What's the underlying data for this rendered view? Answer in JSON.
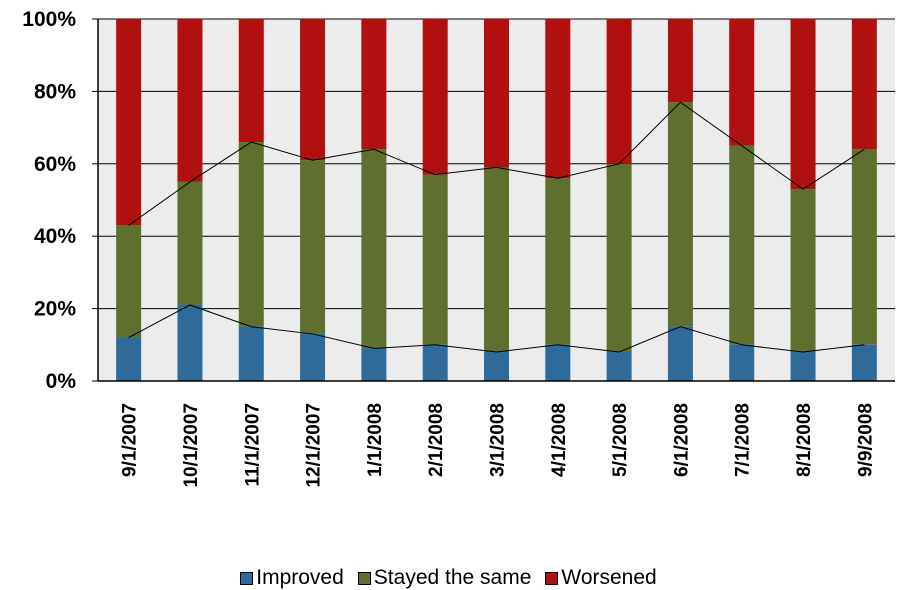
{
  "chart_data": {
    "type": "bar",
    "stacked": true,
    "percent_scale": true,
    "categories": [
      "9/1/2007",
      "10/1/2007",
      "11/1/2007",
      "12/1/2007",
      "1/1/2008",
      "2/1/2008",
      "3/1/2008",
      "4/1/2008",
      "5/1/2008",
      "6/1/2008",
      "7/1/2008",
      "8/1/2008",
      "9/9/2008"
    ],
    "series": [
      {
        "name": "Improved",
        "color": "#2e6a9a",
        "values": [
          12,
          21,
          15,
          13,
          9,
          10,
          8,
          10,
          8,
          15,
          10,
          8,
          10
        ]
      },
      {
        "name": "Stayed the same",
        "color": "#5f6f2d",
        "values": [
          31,
          34,
          51,
          48,
          55,
          47,
          51,
          46,
          52,
          62,
          55,
          45,
          54
        ]
      },
      {
        "name": "Worsened",
        "color": "#b0110f",
        "values": [
          57,
          45,
          34,
          39,
          36,
          43,
          41,
          44,
          40,
          23,
          35,
          47,
          36
        ]
      }
    ],
    "series_lines": true,
    "ylim": [
      0,
      100
    ],
    "yticks": [
      "0%",
      "20%",
      "40%",
      "60%",
      "80%",
      "100%"
    ],
    "grid": true,
    "legend_position": "bottom",
    "plot_background": "#ececec"
  }
}
